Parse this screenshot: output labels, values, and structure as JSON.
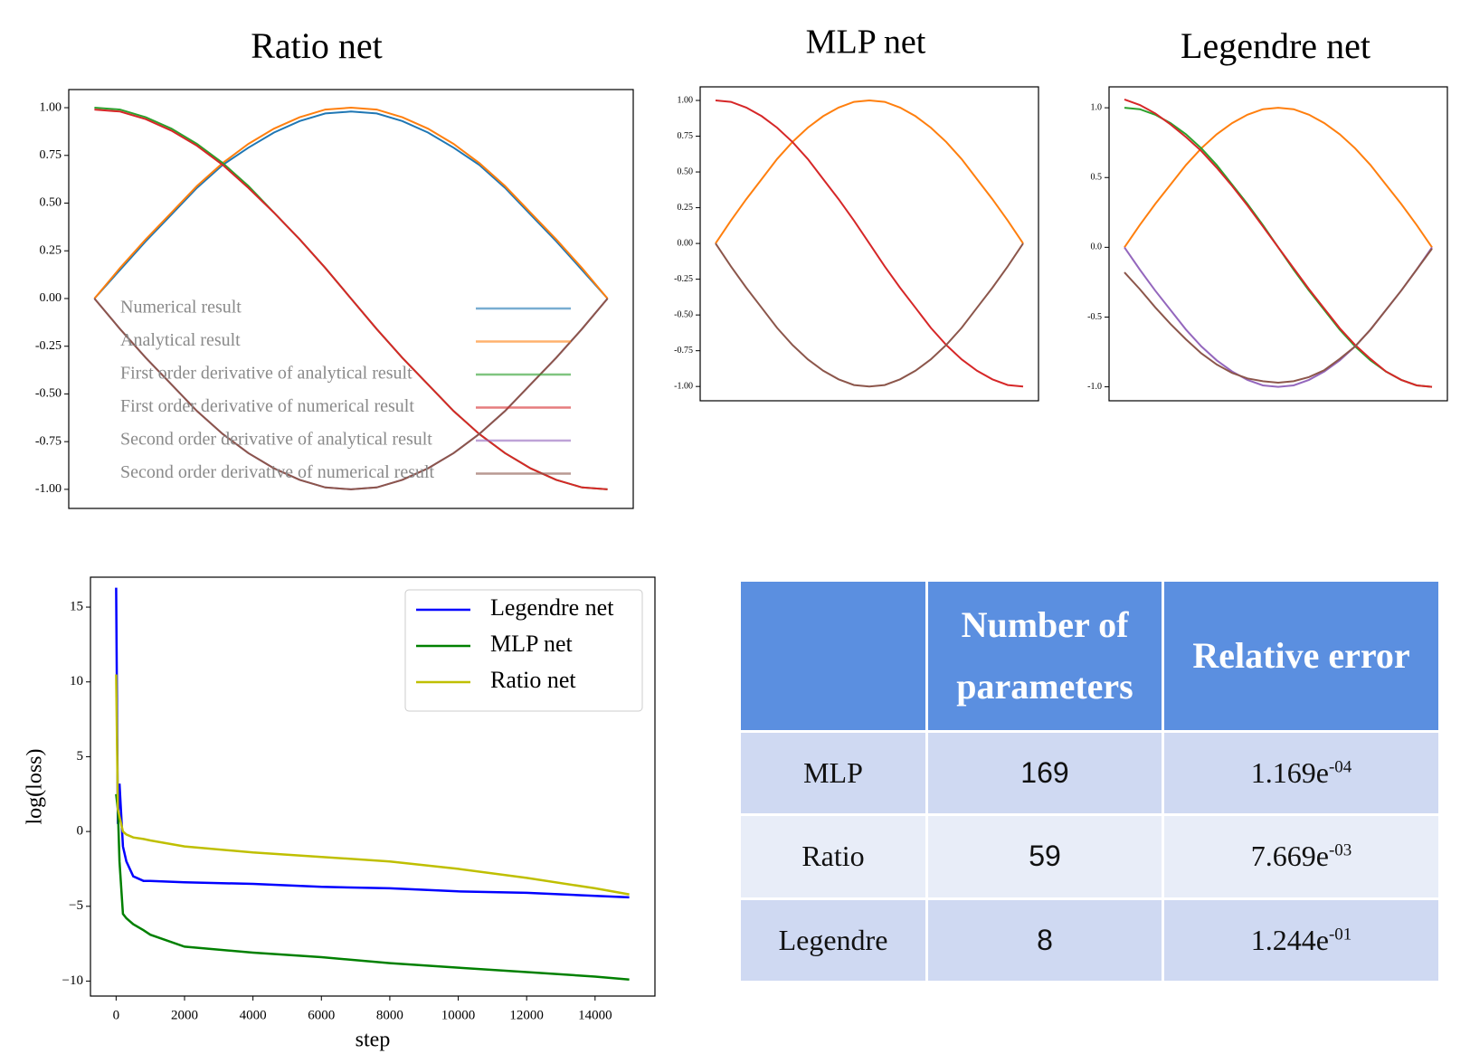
{
  "chart_data": [
    {
      "type": "line",
      "title": "Ratio net",
      "legend": "lower left",
      "x": [
        0,
        0.05,
        0.1,
        0.15,
        0.2,
        0.25,
        0.3,
        0.35,
        0.4,
        0.45,
        0.5,
        0.55,
        0.6,
        0.65,
        0.7,
        0.75,
        0.8,
        0.85,
        0.9,
        0.95,
        1
      ],
      "xlim": [
        -0.05,
        1.05
      ],
      "ylim": [
        -1.1,
        1.095
      ],
      "yticks": [
        {
          "value": 1,
          "label": "1.00"
        },
        {
          "value": 0.75,
          "label": "0.75"
        },
        {
          "value": 0.5,
          "label": "0.50"
        },
        {
          "value": 0.25,
          "label": "0.25"
        },
        {
          "value": 0,
          "label": "0.00"
        },
        {
          "value": -0.25,
          "label": "-0.25"
        },
        {
          "value": -0.5,
          "label": "-0.50"
        },
        {
          "value": -0.75,
          "label": "-0.75"
        },
        {
          "value": -1,
          "label": "-1.00"
        }
      ],
      "series": [
        {
          "name": "Numerical result",
          "color": "#1f77b4",
          "values": [
            0,
            0.15,
            0.3,
            0.44,
            0.58,
            0.7,
            0.79,
            0.87,
            0.93,
            0.97,
            0.98,
            0.97,
            0.93,
            0.87,
            0.79,
            0.7,
            0.58,
            0.44,
            0.3,
            0.15,
            0
          ]
        },
        {
          "name": "Analytical result",
          "color": "#ff7f0e",
          "values": [
            0,
            0.16,
            0.31,
            0.45,
            0.59,
            0.71,
            0.81,
            0.89,
            0.95,
            0.99,
            1,
            0.99,
            0.95,
            0.89,
            0.81,
            0.71,
            0.59,
            0.45,
            0.31,
            0.16,
            0
          ]
        },
        {
          "name": "First order derivative of analytical result",
          "color": "#2ca02c",
          "values": [
            1,
            0.99,
            0.95,
            0.89,
            0.81,
            0.71,
            0.59,
            0.45,
            0.31,
            0.16,
            0,
            -0.16,
            -0.31,
            -0.45,
            -0.59,
            -0.71,
            -0.81,
            -0.89,
            -0.95,
            -0.99,
            -1
          ]
        },
        {
          "name": "First order derivative of numerical result",
          "color": "#d62728",
          "values": [
            0.99,
            0.98,
            0.94,
            0.88,
            0.8,
            0.7,
            0.58,
            0.45,
            0.31,
            0.16,
            0,
            -0.16,
            -0.31,
            -0.45,
            -0.59,
            -0.71,
            -0.81,
            -0.89,
            -0.95,
            -0.99,
            -1
          ]
        },
        {
          "name": "Second order derivative of analytical result",
          "color": "#9467bd",
          "values": [
            0,
            -0.16,
            -0.31,
            -0.45,
            -0.59,
            -0.71,
            -0.81,
            -0.89,
            -0.95,
            -0.99,
            -1,
            -0.99,
            -0.95,
            -0.89,
            -0.81,
            -0.71,
            -0.59,
            -0.45,
            -0.31,
            -0.16,
            0
          ]
        },
        {
          "name": "Second order derivative of numerical result",
          "color": "#8c564b",
          "values": [
            0,
            -0.16,
            -0.31,
            -0.45,
            -0.59,
            -0.71,
            -0.81,
            -0.89,
            -0.95,
            -0.99,
            -1,
            -0.99,
            -0.95,
            -0.89,
            -0.81,
            -0.71,
            -0.59,
            -0.45,
            -0.31,
            -0.16,
            0
          ]
        }
      ]
    },
    {
      "type": "line",
      "title": "MLP net",
      "x": [
        0,
        0.05,
        0.1,
        0.15,
        0.2,
        0.25,
        0.3,
        0.35,
        0.4,
        0.45,
        0.5,
        0.55,
        0.6,
        0.65,
        0.7,
        0.75,
        0.8,
        0.85,
        0.9,
        0.95,
        1
      ],
      "xlim": [
        -0.05,
        1.05
      ],
      "ylim": [
        -1.1,
        1.095
      ],
      "yticks": [
        {
          "value": 1,
          "label": "1.00"
        },
        {
          "value": 0.75,
          "label": "0.75"
        },
        {
          "value": 0.5,
          "label": "0.50"
        },
        {
          "value": 0.25,
          "label": "0.25"
        },
        {
          "value": 0,
          "label": "0.00"
        },
        {
          "value": -0.25,
          "label": "-0.25"
        },
        {
          "value": -0.5,
          "label": "-0.50"
        },
        {
          "value": -0.75,
          "label": "-0.75"
        },
        {
          "value": -1,
          "label": "-1.00"
        }
      ],
      "series": [
        {
          "color": "#ff7f0e",
          "values": [
            0,
            0.16,
            0.31,
            0.45,
            0.59,
            0.71,
            0.81,
            0.89,
            0.95,
            0.99,
            1,
            0.99,
            0.95,
            0.89,
            0.81,
            0.71,
            0.59,
            0.45,
            0.31,
            0.16,
            0
          ]
        },
        {
          "color": "#d62728",
          "values": [
            1,
            0.99,
            0.95,
            0.89,
            0.81,
            0.71,
            0.59,
            0.45,
            0.31,
            0.16,
            0,
            -0.16,
            -0.31,
            -0.45,
            -0.59,
            -0.71,
            -0.81,
            -0.89,
            -0.95,
            -0.99,
            -1
          ]
        },
        {
          "color": "#8c564b",
          "values": [
            0,
            -0.16,
            -0.31,
            -0.45,
            -0.59,
            -0.71,
            -0.81,
            -0.89,
            -0.95,
            -0.99,
            -1,
            -0.99,
            -0.95,
            -0.89,
            -0.81,
            -0.71,
            -0.59,
            -0.45,
            -0.31,
            -0.16,
            0
          ]
        }
      ]
    },
    {
      "type": "line",
      "title": "Legendre net",
      "x": [
        0,
        0.05,
        0.1,
        0.15,
        0.2,
        0.25,
        0.3,
        0.35,
        0.4,
        0.45,
        0.5,
        0.55,
        0.6,
        0.65,
        0.7,
        0.75,
        0.8,
        0.85,
        0.9,
        0.95,
        1
      ],
      "xlim": [
        -0.05,
        1.05
      ],
      "ylim": [
        -1.1,
        1.15
      ],
      "yticks": [
        {
          "value": 1,
          "label": "1.0"
        },
        {
          "value": 0.5,
          "label": "0.5"
        },
        {
          "value": 0,
          "label": "0.0"
        },
        {
          "value": -0.5,
          "label": "-0.5"
        },
        {
          "value": -1,
          "label": "-1.0"
        }
      ],
      "series": [
        {
          "color": "#ff7f0e",
          "values": [
            0,
            0.16,
            0.31,
            0.45,
            0.59,
            0.71,
            0.81,
            0.89,
            0.95,
            0.99,
            1,
            0.99,
            0.95,
            0.89,
            0.81,
            0.71,
            0.59,
            0.45,
            0.31,
            0.16,
            0
          ]
        },
        {
          "color": "#2ca02c",
          "values": [
            1,
            0.99,
            0.95,
            0.89,
            0.81,
            0.71,
            0.59,
            0.45,
            0.31,
            0.16,
            0,
            -0.16,
            -0.31,
            -0.45,
            -0.59,
            -0.71,
            -0.81,
            -0.89,
            -0.95,
            -0.99,
            -1
          ]
        },
        {
          "color": "#d62728",
          "values": [
            1.06,
            1.02,
            0.96,
            0.88,
            0.79,
            0.69,
            0.57,
            0.44,
            0.3,
            0.15,
            0,
            -0.15,
            -0.3,
            -0.44,
            -0.58,
            -0.7,
            -0.8,
            -0.89,
            -0.95,
            -0.99,
            -1
          ]
        },
        {
          "color": "#9467bd",
          "values": [
            0,
            -0.16,
            -0.31,
            -0.45,
            -0.59,
            -0.71,
            -0.81,
            -0.89,
            -0.95,
            -0.99,
            -1,
            -0.99,
            -0.95,
            -0.89,
            -0.81,
            -0.71,
            -0.59,
            -0.45,
            -0.31,
            -0.16,
            0
          ]
        },
        {
          "color": "#8c564b",
          "values": [
            -0.18,
            -0.3,
            -0.43,
            -0.55,
            -0.66,
            -0.76,
            -0.84,
            -0.9,
            -0.94,
            -0.96,
            -0.97,
            -0.96,
            -0.93,
            -0.88,
            -0.8,
            -0.71,
            -0.59,
            -0.45,
            -0.31,
            -0.16,
            -0.01
          ]
        }
      ]
    },
    {
      "type": "line",
      "x_label": "step",
      "y_label": "log(loss)",
      "legend": "upper right",
      "x": [
        0,
        50,
        100,
        200,
        300,
        500,
        800,
        1000,
        2000,
        4000,
        6000,
        8000,
        10000,
        12000,
        14000,
        15000
      ],
      "xlim": [
        -750,
        15750
      ],
      "ylim": [
        -11,
        17
      ],
      "xticks": [
        0,
        2000,
        4000,
        6000,
        8000,
        10000,
        12000,
        14000
      ],
      "yticks": [
        {
          "value": -10,
          "label": "−10"
        },
        {
          "value": -5,
          "label": "−5"
        },
        0,
        5,
        10,
        15
      ],
      "series": [
        {
          "name": "Legendre net",
          "color": "#0000ff",
          "values": [
            16.3,
            0.5,
            3.2,
            -1,
            -2,
            -3,
            -3.3,
            -3.3,
            -3.4,
            -3.5,
            -3.7,
            -3.8,
            -4,
            -4.1,
            -4.3,
            -4.4
          ]
        },
        {
          "name": "MLP net",
          "color": "#008000",
          "values": [
            2.5,
            1.5,
            -2,
            -5.5,
            -5.8,
            -6.2,
            -6.6,
            -6.9,
            -7.7,
            -8.1,
            -8.4,
            -8.8,
            -9.1,
            -9.4,
            -9.7,
            -9.9
          ]
        },
        {
          "name": "Ratio net",
          "color": "#bfbf00",
          "values": [
            10.5,
            1.5,
            1,
            0,
            -0.2,
            -0.4,
            -0.5,
            -0.6,
            -1,
            -1.4,
            -1.7,
            -2,
            -2.5,
            -3.1,
            -3.8,
            -4.2
          ]
        }
      ]
    }
  ],
  "table": {
    "columns": [
      "Number of parameters",
      "Relative error"
    ],
    "rows": [
      {
        "model": "MLP",
        "parameters": 169,
        "error_base": "1.169e",
        "error_exp": "-04"
      },
      {
        "model": "Ratio",
        "parameters": 59,
        "error_base": "7.669e",
        "error_exp": "-03"
      },
      {
        "model": "Legendre",
        "parameters": 8,
        "error_base": "1.244e",
        "error_exp": "-01"
      }
    ]
  }
}
